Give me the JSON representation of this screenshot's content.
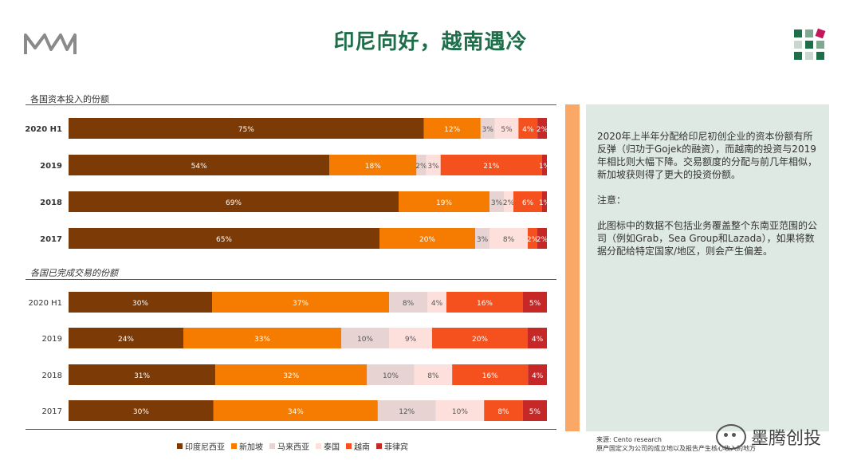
{
  "title": "印尼向好，越南遇冷",
  "colors": {
    "title": "#1f6e4a",
    "印度尼西亚": "#7b3a06",
    "新加坡": "#f57c00",
    "马来西亚": "#e8d3d3",
    "泰国": "#fde0dc",
    "越南": "#f4511e",
    "菲律宾": "#c62828"
  },
  "chart_data": [
    {
      "type": "bar",
      "orientation": "horizontal",
      "stacked": true,
      "title": "各国资本投入的份额",
      "categories": [
        "2020 H1",
        "2019",
        "2018",
        "2017"
      ],
      "series": [
        {
          "name": "印度尼西亚",
          "values": [
            75,
            54,
            69,
            65
          ],
          "labels": [
            "75%",
            "54%",
            "69%",
            "65%"
          ]
        },
        {
          "name": "新加坡",
          "values": [
            12,
            18,
            19,
            20
          ],
          "labels": [
            "12%",
            "18%",
            "19%",
            "20%"
          ]
        },
        {
          "name": "马来西亚",
          "values": [
            3,
            2,
            3,
            3
          ],
          "labels": [
            "3%",
            "2%",
            "3%",
            "3%"
          ]
        },
        {
          "name": "泰国",
          "values": [
            5,
            3,
            2,
            8
          ],
          "labels": [
            "5%",
            "3%",
            "2%",
            "8%"
          ]
        },
        {
          "name": "越南",
          "values": [
            4,
            21,
            6,
            2
          ],
          "labels": [
            "4%",
            "21%",
            "6%",
            "2%"
          ]
        },
        {
          "name": "菲律宾",
          "values": [
            2,
            1,
            1,
            2
          ],
          "labels": [
            "2%",
            "1%",
            "1%",
            "2%"
          ]
        }
      ]
    },
    {
      "type": "bar",
      "orientation": "horizontal",
      "stacked": true,
      "title": "各国已完成交易的份额",
      "categories": [
        "2020 H1",
        "2019",
        "2018",
        "2017"
      ],
      "series": [
        {
          "name": "印度尼西亚",
          "values": [
            30,
            24,
            31,
            30
          ],
          "labels": [
            "30%",
            "24%",
            "31%",
            "30%"
          ]
        },
        {
          "name": "新加坡",
          "values": [
            37,
            33,
            32,
            34
          ],
          "labels": [
            "37%",
            "33%",
            "32%",
            "34%"
          ]
        },
        {
          "name": "马来西亚",
          "values": [
            8,
            10,
            10,
            12
          ],
          "labels": [
            "8%",
            "10%",
            "10%",
            "12%"
          ]
        },
        {
          "name": "泰国",
          "values": [
            4,
            9,
            8,
            10
          ],
          "labels": [
            "4%",
            "9%",
            "8%",
            "10%"
          ]
        },
        {
          "name": "越南",
          "values": [
            16,
            20,
            16,
            8
          ],
          "labels": [
            "16%",
            "20%",
            "16%",
            "8%"
          ]
        },
        {
          "name": "菲律宾",
          "values": [
            5,
            4,
            4,
            5
          ],
          "labels": [
            "5%",
            "4%",
            "4%",
            "5%"
          ]
        }
      ]
    }
  ],
  "legend": [
    "印度尼西亚",
    "新加坡",
    "马来西亚",
    "泰国",
    "越南",
    "菲律宾"
  ],
  "note": {
    "paragraph": "2020年上半年分配给印尼初创企业的资本份额有所反弹（归功于Gojek的融资），而越南的投资与2019年相比则大幅下降。交易额度的分配与前几年相似，新加坡获则得了更大的投资份额。",
    "heading": "注意：",
    "caveat": "此图标中的数据不包括业务覆盖整个东南亚范围的公司（例如Grab，Sea Group和Lazada），如果将数据分配给特定国家/地区，则会产生偏差。"
  },
  "source": {
    "line1": "来源: Cento research",
    "line2": "原产国定义为公司的成立地以及报告产生核心收入的地方"
  },
  "watermark": "墨腾创投"
}
